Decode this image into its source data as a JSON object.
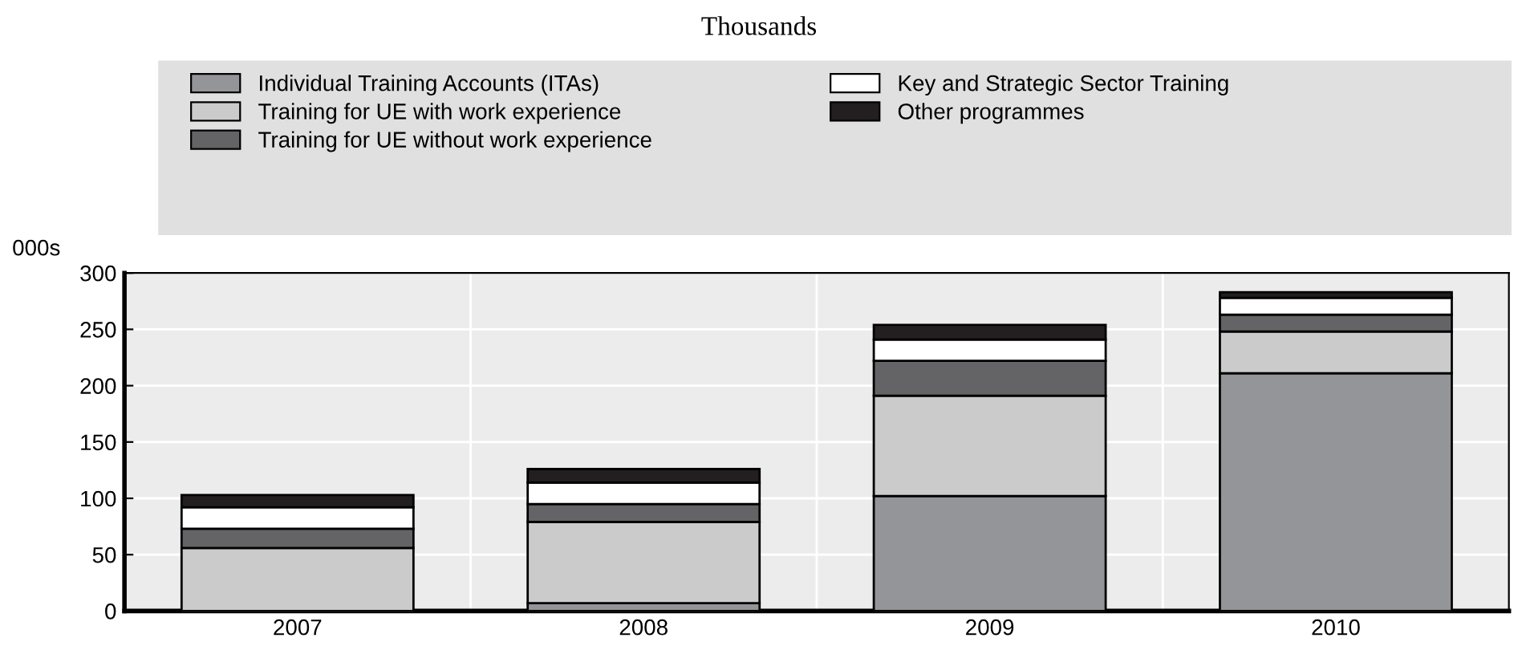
{
  "chart_data": {
    "type": "bar",
    "title": "Thousands",
    "ylabel": "000s",
    "categories": [
      "2007",
      "2008",
      "2009",
      "2010"
    ],
    "series": [
      {
        "name": "Individual Training Accounts (ITAs)",
        "color": "#949599",
        "values": [
          0,
          7,
          102,
          211
        ]
      },
      {
        "name": "Training for UE with work experience",
        "color": "#cbcbcb",
        "values": [
          56,
          72,
          89,
          37
        ]
      },
      {
        "name": "Training for UE without work experience",
        "color": "#646466",
        "values": [
          17,
          16,
          31,
          15
        ]
      },
      {
        "name": "Key and Strategic Sector Training",
        "color": "#ffffff",
        "values": [
          19,
          19,
          19,
          15
        ]
      },
      {
        "name": "Other programmes",
        "color": "#231f20",
        "values": [
          11,
          12,
          13,
          5
        ]
      }
    ],
    "stacked": true,
    "ylim": [
      0,
      300
    ],
    "yticks": [
      0,
      50,
      100,
      150,
      200,
      250,
      300
    ],
    "grid": true,
    "legend": "top"
  }
}
